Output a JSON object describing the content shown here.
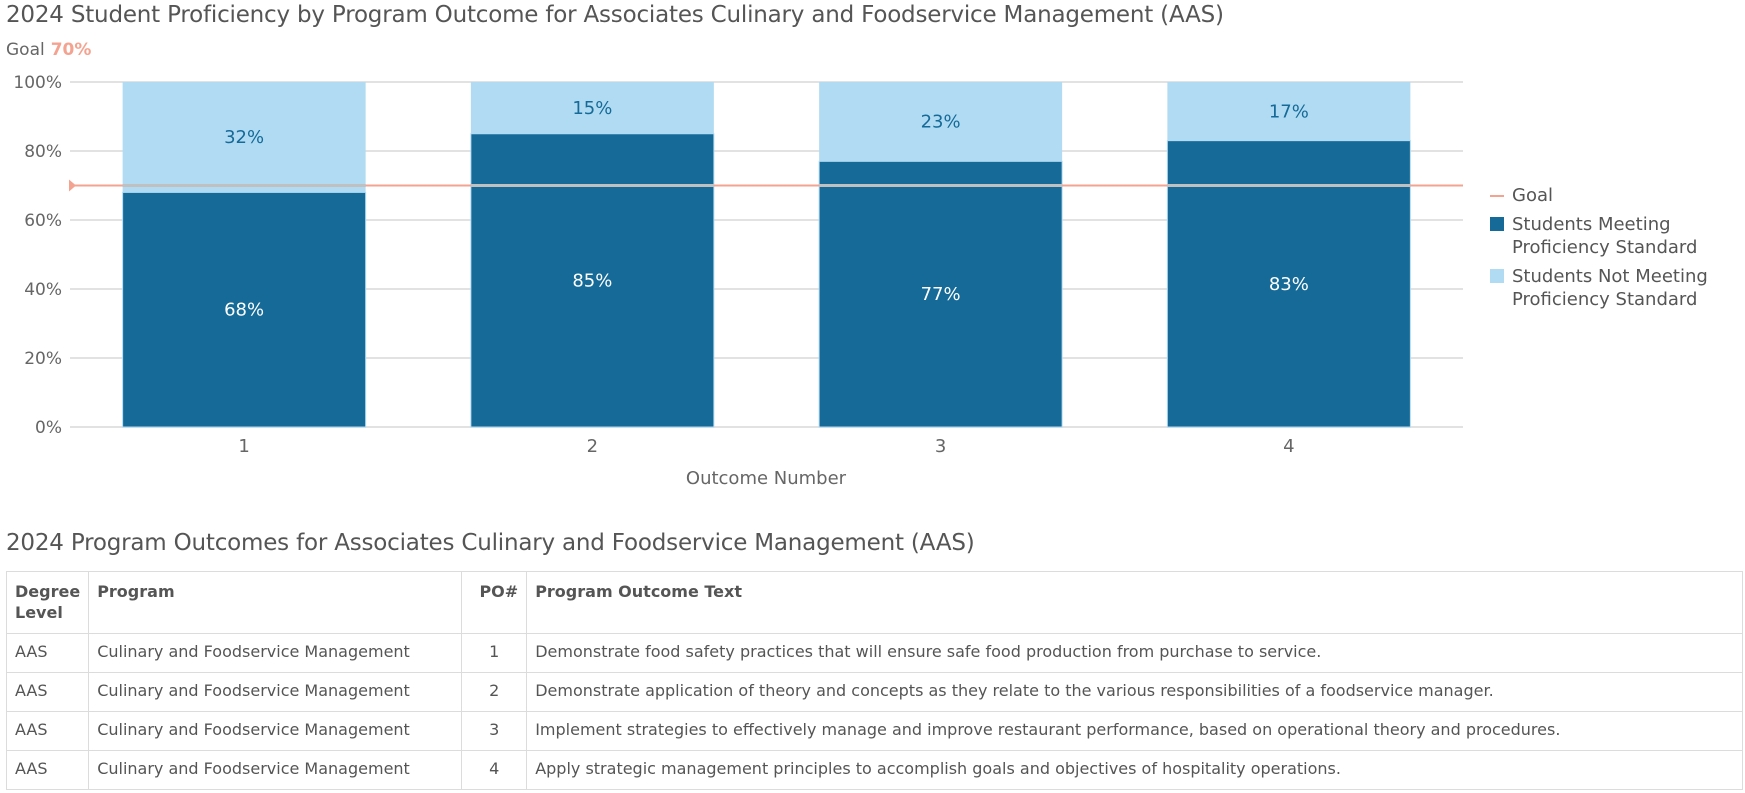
{
  "chart_title": "2024 Student Proficiency by Program Outcome for Associates Culinary and Foodservice Management (AAS)",
  "goal_caption": {
    "label": "Goal",
    "value": "70%"
  },
  "chart_data": {
    "type": "bar",
    "stacked": true,
    "title": "2024 Student Proficiency by Program Outcome for Associates Culinary and Foodservice Management (AAS)",
    "xlabel": "Outcome Number",
    "ylabel": "",
    "categories": [
      "1",
      "2",
      "3",
      "4"
    ],
    "series": [
      {
        "name": "Students Meeting Proficiency Standard",
        "values": [
          68,
          85,
          77,
          83
        ],
        "labels": [
          "68%",
          "85%",
          "77%",
          "83%"
        ],
        "color": "#156a98",
        "label_color": "#ffffff"
      },
      {
        "name": "Students Not Meeting Proficiency Standard",
        "values": [
          32,
          15,
          23,
          17
        ],
        "labels": [
          "32%",
          "15%",
          "23%",
          "17%"
        ],
        "color": "#b0dbf3",
        "label_color": "#156a98"
      }
    ],
    "goal": {
      "name": "Goal",
      "value": 70,
      "color": "#f4a390"
    },
    "ylim": [
      0,
      100
    ],
    "yticks": [
      0,
      20,
      40,
      60,
      80,
      100
    ],
    "ytick_labels": [
      "0%",
      "20%",
      "40%",
      "60%",
      "80%",
      "100%"
    ],
    "grid": true,
    "legend_position": "right",
    "legend": [
      "Goal",
      "Students Meeting Proficiency Standard",
      "Students Not Meeting Proficiency Standard"
    ]
  },
  "legend": {
    "goal": "Goal",
    "meeting_line1": "Students Meeting",
    "meeting_line2": "Proficiency Standard",
    "not_meeting_line1": "Students Not Meeting",
    "not_meeting_line2": "Proficiency Standard"
  },
  "table": {
    "title": "2024 Program Outcomes for Associates Culinary and Foodservice Management (AAS)",
    "headers": {
      "degree_line1": "Degree",
      "degree_line2": "Level",
      "program": "Program",
      "po": "PO#",
      "text": "Program Outcome Text"
    },
    "rows": [
      {
        "degree": "AAS",
        "program": "Culinary and Foodservice Management",
        "po": "1",
        "text": "Demonstrate food safety practices that will ensure safe food production from purchase to service."
      },
      {
        "degree": "AAS",
        "program": "Culinary and Foodservice Management",
        "po": "2",
        "text": "Demonstrate application of theory and concepts as they relate to the various responsibilities of a foodservice manager."
      },
      {
        "degree": "AAS",
        "program": "Culinary and Foodservice Management",
        "po": "3",
        "text": "Implement strategies to effectively manage and improve restaurant performance, based on operational theory and procedures."
      },
      {
        "degree": "AAS",
        "program": "Culinary and Foodservice Management",
        "po": "4",
        "text": "Apply strategic management principles to accomplish goals and objectives of hospitality operations."
      }
    ]
  }
}
